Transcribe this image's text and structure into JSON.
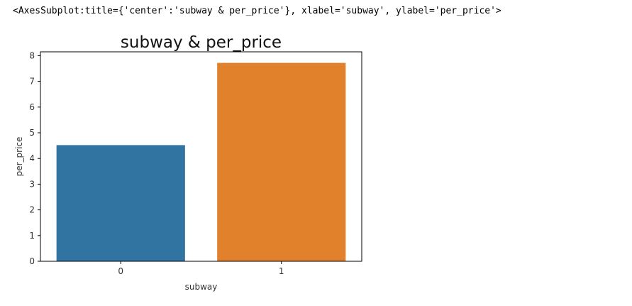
{
  "output_text": "<AxesSubplot:title={'center':'subway & per_price'}, xlabel='subway', ylabel='per_price'>",
  "chart_data": {
    "type": "bar",
    "title": "subway & per_price",
    "xlabel": "subway",
    "ylabel": "per_price",
    "categories": [
      "0",
      "1"
    ],
    "values": [
      4.52,
      7.72
    ],
    "colors": [
      "#3274a1",
      "#e1812c"
    ],
    "ylim": [
      0,
      8.15
    ],
    "yticks": [
      "0",
      "1",
      "2",
      "3",
      "4",
      "5",
      "6",
      "7",
      "8"
    ],
    "grid": false
  }
}
